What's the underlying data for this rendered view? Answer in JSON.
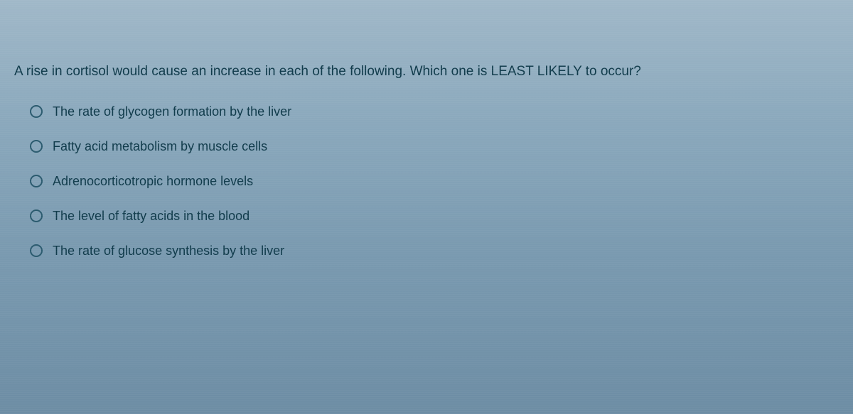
{
  "question": {
    "prompt": "A rise in cortisol would cause an increase in each of the following. Which one is LEAST LIKELY to occur?",
    "options": [
      {
        "label": "The rate of glycogen formation by the liver"
      },
      {
        "label": "Fatty acid metabolism by muscle cells"
      },
      {
        "label": "Adrenocorticotropic hormone levels"
      },
      {
        "label": "The level of fatty acids in the blood"
      },
      {
        "label": "The rate of glucose synthesis by the liver"
      }
    ]
  },
  "colors": {
    "text": "#0f3a4a",
    "radio_border": "#2a5a6e",
    "bg_top": "#a0b8c8",
    "bg_bottom": "#6d8da4"
  }
}
